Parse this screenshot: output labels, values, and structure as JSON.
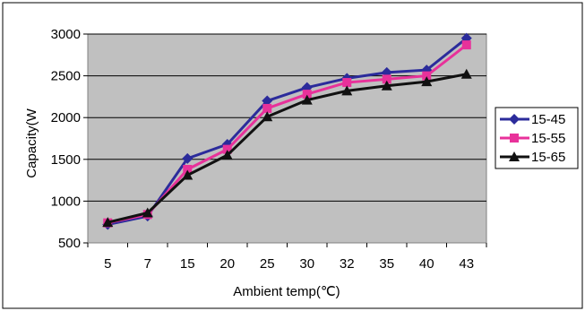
{
  "chart_data": {
    "type": "line",
    "title": "",
    "xlabel": "Ambient temp(℃)",
    "ylabel": "Capacity(W",
    "categories": [
      "5",
      "7",
      "15",
      "20",
      "25",
      "30",
      "32",
      "35",
      "40",
      "43"
    ],
    "ylim": [
      500,
      3000
    ],
    "yticks": [
      "500",
      "1000",
      "1500",
      "2000",
      "2500",
      "3000"
    ],
    "grid": true,
    "legend_position": "right",
    "plot_background": "#c0c0c0",
    "series": [
      {
        "name": "15-45",
        "color": "#2b2b9b",
        "marker": "diamond",
        "values": [
          720,
          820,
          1510,
          1680,
          2200,
          2360,
          2470,
          2540,
          2570,
          2950
        ]
      },
      {
        "name": "15-55",
        "color": "#e8319a",
        "marker": "square",
        "values": [
          740,
          840,
          1380,
          1620,
          2110,
          2280,
          2420,
          2460,
          2500,
          2870
        ]
      },
      {
        "name": "15-65",
        "color": "#111111",
        "marker": "triangle",
        "values": [
          745,
          860,
          1310,
          1550,
          2010,
          2210,
          2320,
          2380,
          2430,
          2520
        ]
      }
    ]
  }
}
